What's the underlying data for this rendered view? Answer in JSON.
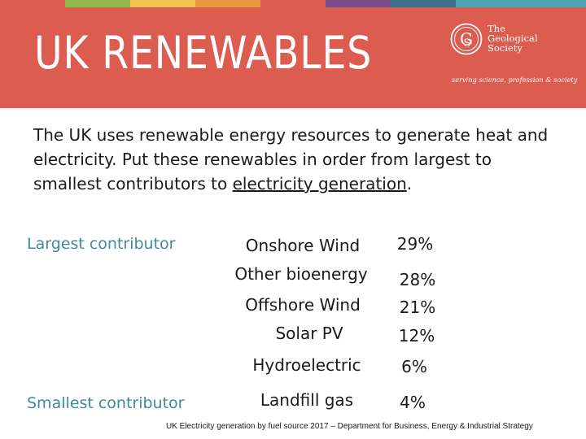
{
  "colors": {
    "banner": "#dc5c4f",
    "accent_text": "#3f8a9c",
    "strip": [
      "#dc5c4f",
      "#8db84a",
      "#f2c14e",
      "#e8973e",
      "#dc5c4f",
      "#7a4e8c",
      "#3c6e8f",
      "#4aa3b5"
    ]
  },
  "header": {
    "title": "UK RENEWABLES",
    "logo": {
      "name_line1": "The",
      "name_line2": "Geological",
      "name_line3": "Society",
      "tagline": "serving science, profession & society",
      "icon": "geological-society-seal-icon"
    }
  },
  "intro": {
    "text_before": "The UK uses renewable energy resources to generate heat and electricity. Put these renewables in order from largest to smallest contributors to ",
    "underlined": "electricity generation",
    "text_after": "."
  },
  "labels": {
    "largest": "Largest contributor",
    "smallest": "Smallest contributor"
  },
  "sources": [
    {
      "name": "Onshore Wind",
      "percent": "29%"
    },
    {
      "name": "Other bioenergy",
      "percent": "28%"
    },
    {
      "name": "Offshore Wind",
      "percent": "21%"
    },
    {
      "name": "Solar PV",
      "percent": "12%"
    },
    {
      "name": "Hydroelectric",
      "percent": "6%"
    },
    {
      "name": "Landfill gas",
      "percent": "4%"
    }
  ],
  "citation": "UK Electricity generation by fuel source 2017 – Department for Business, Energy & Industrial Strategy"
}
